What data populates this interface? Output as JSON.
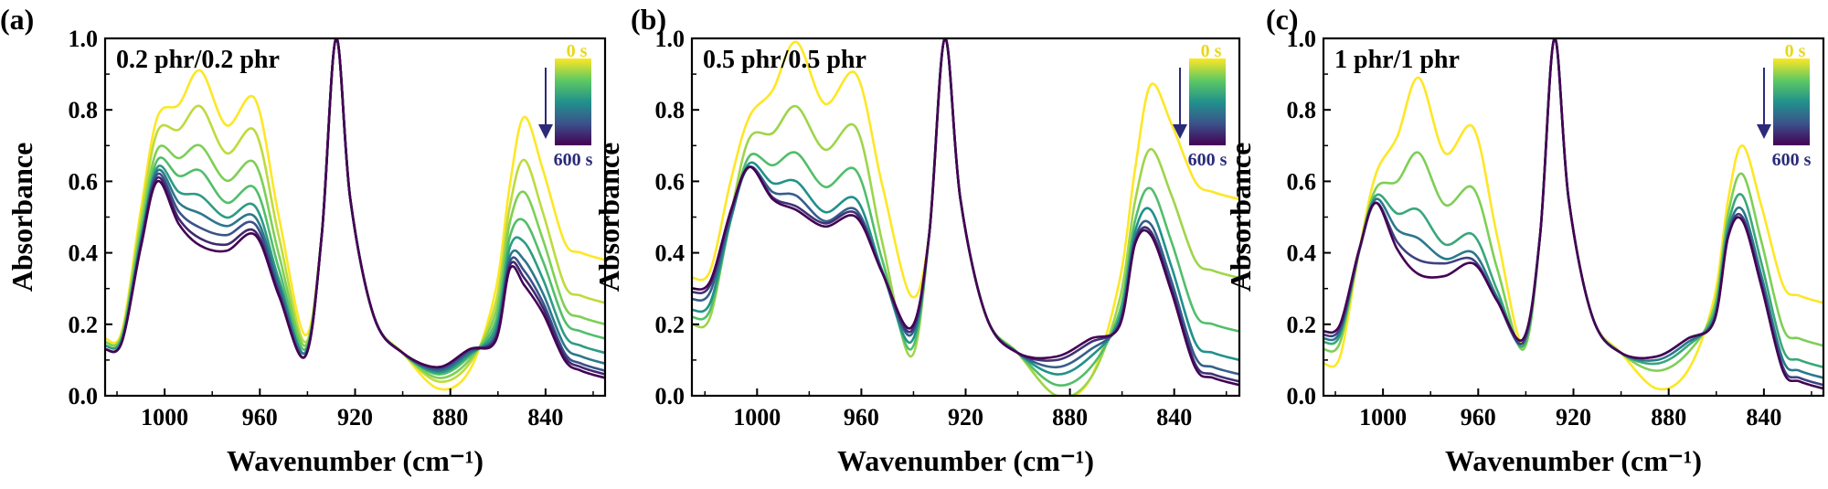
{
  "chart_data": [
    {
      "type": "line",
      "panel_label": "(a)",
      "annotation": "0.2 phr/0.2 phr",
      "xlabel": "Wavenumber (cm⁻¹)",
      "ylabel": "Absorbance",
      "xlim": [
        1025,
        815
      ],
      "ylim": [
        0,
        1.0
      ],
      "x_ticks": [
        "1000",
        "960",
        "920",
        "880",
        "840"
      ],
      "y_ticks": [
        "0.0",
        "0.2",
        "0.4",
        "0.6",
        "0.8",
        "1.0"
      ],
      "colorbar": {
        "top_label": "0 s",
        "bottom_label": "600 s",
        "colormap": "viridis"
      },
      "series": [
        {
          "time_fraction": 0.0,
          "peaks": {
            "x1003": 0.78,
            "x985": 0.91,
            "x962": 0.83,
            "x928": 1.0,
            "x849": 0.78
          },
          "baseline_start": 0.16,
          "min_940": 0.17,
          "min_885": 0.02,
          "end": 0.38
        },
        {
          "time_fraction": 0.1,
          "peaks": {
            "x1003": 0.74,
            "x985": 0.81,
            "x962": 0.74,
            "x928": 1.0,
            "x849": 0.66
          },
          "baseline_start": 0.15,
          "min_940": 0.15,
          "min_885": 0.04,
          "end": 0.26
        },
        {
          "time_fraction": 0.2,
          "peaks": {
            "x1003": 0.69,
            "x985": 0.7,
            "x962": 0.65,
            "x928": 1.0,
            "x849": 0.57
          },
          "baseline_start": 0.15,
          "min_940": 0.14,
          "min_885": 0.05,
          "end": 0.2
        },
        {
          "time_fraction": 0.3,
          "peaks": {
            "x1003": 0.66,
            "x985": 0.63,
            "x962": 0.58,
            "x928": 1.0,
            "x849": 0.49
          },
          "baseline_start": 0.14,
          "min_940": 0.13,
          "min_885": 0.06,
          "end": 0.16
        },
        {
          "time_fraction": 0.45,
          "peaks": {
            "x1003": 0.64,
            "x985": 0.56,
            "x962": 0.53,
            "x928": 1.0,
            "x849": 0.43
          },
          "baseline_start": 0.14,
          "min_940": 0.12,
          "min_885": 0.065,
          "end": 0.12
        },
        {
          "time_fraction": 0.6,
          "peaks": {
            "x1003": 0.63,
            "x985": 0.51,
            "x962": 0.5,
            "x928": 1.0,
            "x849": 0.38
          },
          "baseline_start": 0.13,
          "min_940": 0.12,
          "min_885": 0.07,
          "end": 0.09
        },
        {
          "time_fraction": 0.75,
          "peaks": {
            "x1003": 0.62,
            "x985": 0.47,
            "x962": 0.48,
            "x928": 1.0,
            "x849": 0.35
          },
          "baseline_start": 0.13,
          "min_940": 0.11,
          "min_885": 0.075,
          "end": 0.07
        },
        {
          "time_fraction": 0.88,
          "peaks": {
            "x1003": 0.61,
            "x985": 0.44,
            "x962": 0.46,
            "x928": 1.0,
            "x849": 0.33
          },
          "baseline_start": 0.13,
          "min_940": 0.11,
          "min_885": 0.08,
          "end": 0.06
        },
        {
          "time_fraction": 1.0,
          "peaks": {
            "x1003": 0.6,
            "x985": 0.42,
            "x962": 0.45,
            "x928": 1.0,
            "x849": 0.31
          },
          "baseline_start": 0.13,
          "min_940": 0.11,
          "min_885": 0.08,
          "end": 0.05
        }
      ]
    },
    {
      "type": "line",
      "panel_label": "(b)",
      "annotation": "0.5 phr/0.5 phr",
      "xlabel": "Wavenumber (cm⁻¹)",
      "ylabel": "Absorbance",
      "xlim": [
        1025,
        815
      ],
      "ylim": [
        0,
        1.0
      ],
      "x_ticks": [
        "1000",
        "960",
        "920",
        "880",
        "840"
      ],
      "y_ticks": [
        "0.0",
        "0.2",
        "0.4",
        "0.6",
        "0.8",
        "1.0"
      ],
      "colorbar": {
        "top_label": "0 s",
        "bottom_label": "600 s",
        "colormap": "viridis"
      },
      "series": [
        {
          "time_fraction": 0.0,
          "peaks": {
            "x1003": 0.78,
            "x985": 0.99,
            "x962": 0.9,
            "x928": 1.0,
            "x849": 0.87
          },
          "baseline_start": 0.33,
          "min_940": 0.28,
          "min_885": 0.0,
          "end": 0.55
        },
        {
          "time_fraction": 0.15,
          "peaks": {
            "x1003": 0.72,
            "x985": 0.81,
            "x962": 0.75,
            "x928": 1.0,
            "x849": 0.69
          },
          "baseline_start": 0.2,
          "min_940": 0.11,
          "min_885": 0.0,
          "end": 0.33
        },
        {
          "time_fraction": 0.3,
          "peaks": {
            "x1003": 0.67,
            "x985": 0.68,
            "x962": 0.63,
            "x928": 1.0,
            "x849": 0.58
          },
          "baseline_start": 0.22,
          "min_940": 0.13,
          "min_885": 0.03,
          "end": 0.18
        },
        {
          "time_fraction": 0.5,
          "peaks": {
            "x1003": 0.65,
            "x985": 0.6,
            "x962": 0.55,
            "x928": 1.0,
            "x849": 0.52
          },
          "baseline_start": 0.24,
          "min_940": 0.15,
          "min_885": 0.06,
          "end": 0.1
        },
        {
          "time_fraction": 0.7,
          "peaks": {
            "x1003": 0.64,
            "x985": 0.56,
            "x962": 0.52,
            "x928": 1.0,
            "x849": 0.48
          },
          "baseline_start": 0.27,
          "min_940": 0.17,
          "min_885": 0.08,
          "end": 0.06
        },
        {
          "time_fraction": 0.85,
          "peaks": {
            "x1003": 0.64,
            "x985": 0.53,
            "x962": 0.51,
            "x928": 1.0,
            "x849": 0.46
          },
          "baseline_start": 0.29,
          "min_940": 0.18,
          "min_885": 0.1,
          "end": 0.04
        },
        {
          "time_fraction": 1.0,
          "peaks": {
            "x1003": 0.64,
            "x985": 0.52,
            "x962": 0.5,
            "x928": 1.0,
            "x849": 0.45
          },
          "baseline_start": 0.3,
          "min_940": 0.19,
          "min_885": 0.11,
          "end": 0.03
        }
      ]
    },
    {
      "type": "line",
      "panel_label": "(c)",
      "annotation": "1 phr/1 phr",
      "xlabel": "Wavenumber (cm⁻¹)",
      "ylabel": "Absorbance",
      "xlim": [
        1025,
        815
      ],
      "ylim": [
        0,
        1.0
      ],
      "x_ticks": [
        "1000",
        "960",
        "920",
        "880",
        "840"
      ],
      "y_ticks": [
        "0.0",
        "0.2",
        "0.4",
        "0.6",
        "0.8",
        "1.0"
      ],
      "colorbar": {
        "top_label": "0 s",
        "bottom_label": "600 s",
        "colormap": "viridis"
      },
      "series": [
        {
          "time_fraction": 0.0,
          "peaks": {
            "x1003": 0.62,
            "x985": 0.89,
            "x962": 0.75,
            "x928": 1.0,
            "x849": 0.7
          },
          "baseline_start": 0.09,
          "min_940": 0.14,
          "min_885": 0.02,
          "end": 0.26
        },
        {
          "time_fraction": 0.2,
          "peaks": {
            "x1003": 0.58,
            "x985": 0.68,
            "x962": 0.58,
            "x928": 1.0,
            "x849": 0.62
          },
          "baseline_start": 0.13,
          "min_940": 0.13,
          "min_885": 0.07,
          "end": 0.14
        },
        {
          "time_fraction": 0.4,
          "peaks": {
            "x1003": 0.56,
            "x985": 0.52,
            "x962": 0.45,
            "x928": 1.0,
            "x849": 0.56
          },
          "baseline_start": 0.15,
          "min_940": 0.14,
          "min_885": 0.09,
          "end": 0.08
        },
        {
          "time_fraction": 0.6,
          "peaks": {
            "x1003": 0.55,
            "x985": 0.44,
            "x962": 0.4,
            "x928": 1.0,
            "x849": 0.52
          },
          "baseline_start": 0.16,
          "min_940": 0.15,
          "min_885": 0.1,
          "end": 0.05
        },
        {
          "time_fraction": 0.8,
          "peaks": {
            "x1003": 0.54,
            "x985": 0.38,
            "x962": 0.38,
            "x928": 1.0,
            "x849": 0.5
          },
          "baseline_start": 0.17,
          "min_940": 0.15,
          "min_885": 0.11,
          "end": 0.03
        },
        {
          "time_fraction": 1.0,
          "peaks": {
            "x1003": 0.54,
            "x985": 0.34,
            "x962": 0.37,
            "x928": 1.0,
            "x849": 0.49
          },
          "baseline_start": 0.18,
          "min_940": 0.16,
          "min_885": 0.11,
          "end": 0.02
        }
      ]
    }
  ]
}
